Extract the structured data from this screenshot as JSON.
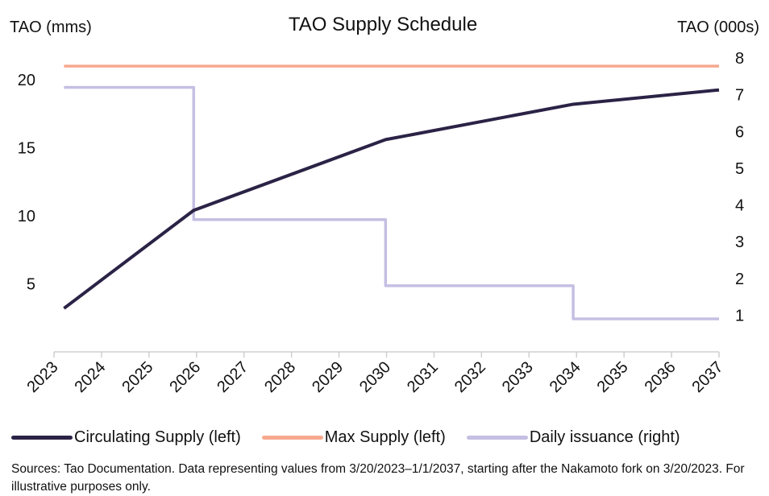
{
  "chart_data": {
    "type": "line",
    "title": "TAO Supply Schedule",
    "ylabel_left": "TAO (mms)",
    "ylabel_right": "TAO (000s)",
    "x_ticks": [
      "2023",
      "2024",
      "2025",
      "2026",
      "2027",
      "2028",
      "2029",
      "2030",
      "2031",
      "2032",
      "2033",
      "2034",
      "2035",
      "2036",
      "2037"
    ],
    "xlim": [
      2023,
      2037
    ],
    "ylim_left": [
      0,
      21.6
    ],
    "ylim_right": [
      0,
      8
    ],
    "y_ticks_left": [
      5,
      10,
      15,
      20
    ],
    "y_ticks_right": [
      1,
      2,
      3,
      4,
      5,
      6,
      7,
      8
    ],
    "grid": false,
    "legend_placement": "bottom",
    "series": [
      {
        "name": "Circulating Supply (left)",
        "axis": "left",
        "color": "#2b2346",
        "step": false,
        "points": [
          [
            2023.21,
            3.2
          ],
          [
            2025.94,
            10.4
          ],
          [
            2029.98,
            15.6
          ],
          [
            2033.93,
            18.2
          ],
          [
            2037.0,
            19.25
          ]
        ]
      },
      {
        "name": "Max Supply (left)",
        "axis": "left",
        "color": "#f7a98f",
        "step": false,
        "points": [
          [
            2023.21,
            21.0
          ],
          [
            2037.0,
            21.0
          ]
        ]
      },
      {
        "name": "Daily issuance (right)",
        "axis": "right",
        "color": "#c5bfe3",
        "step": true,
        "points": [
          [
            2023.21,
            7.2
          ],
          [
            2025.94,
            3.6
          ],
          [
            2029.98,
            1.8
          ],
          [
            2033.93,
            0.9
          ],
          [
            2037.0,
            0.9
          ]
        ]
      }
    ]
  },
  "note": "Sources: Tao Documentation. Data representing values from 3/20/2023–1/1/2037, starting after the Nakamoto fork on 3/20/2023. For illustrative purposes only."
}
